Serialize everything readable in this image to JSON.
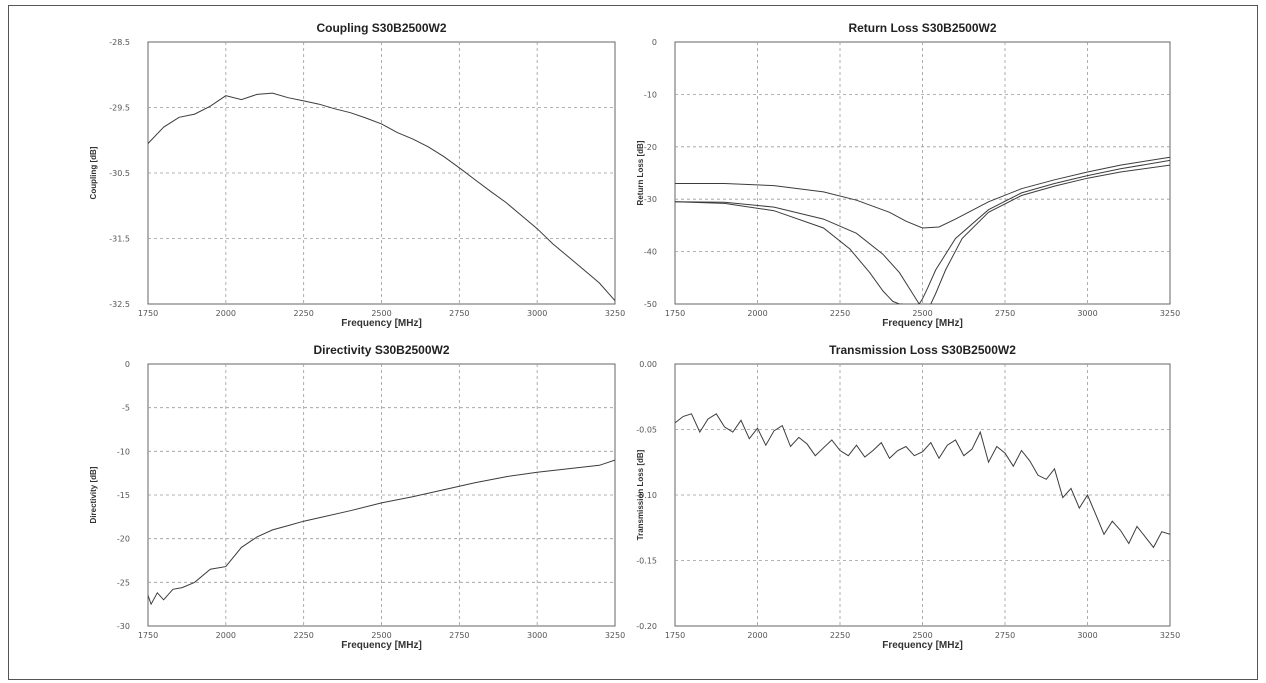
{
  "chart_data": [
    {
      "type": "line",
      "title": "Coupling S30B2500W2",
      "xlabel": "Frequency [MHz]",
      "ylabel": "Coupling [dB]",
      "xlim": [
        1750,
        3250
      ],
      "ylim": [
        -32.5,
        -28.5
      ],
      "xticks": [
        "1750",
        "2000",
        "2250",
        "2500",
        "2750",
        "3000",
        "3250"
      ],
      "yticks": [
        "-28.5",
        "-29.5",
        "-30.5",
        "-31.5",
        "-32.5"
      ],
      "grid": true,
      "series": [
        {
          "x": [
            1750,
            1800,
            1850,
            1900,
            1950,
            2000,
            2050,
            2100,
            2150,
            2200,
            2250,
            2300,
            2350,
            2400,
            2450,
            2500,
            2550,
            2600,
            2650,
            2700,
            2750,
            2800,
            2850,
            2900,
            2950,
            3000,
            3050,
            3100,
            3150,
            3200,
            3250
          ],
          "y": [
            -30.05,
            -29.8,
            -29.65,
            -29.6,
            -29.48,
            -29.32,
            -29.38,
            -29.3,
            -29.28,
            -29.35,
            -29.4,
            -29.45,
            -29.52,
            -29.58,
            -29.66,
            -29.75,
            -29.88,
            -29.98,
            -30.1,
            -30.25,
            -30.42,
            -30.6,
            -30.78,
            -30.95,
            -31.15,
            -31.35,
            -31.58,
            -31.78,
            -31.98,
            -32.18,
            -32.45
          ]
        }
      ]
    },
    {
      "type": "line",
      "title": "Return Loss S30B2500W2",
      "xlabel": "Frequency [MHz]",
      "ylabel": "Return Loss [dB]",
      "xlim": [
        1750,
        3250
      ],
      "ylim": [
        -50,
        0
      ],
      "xticks": [
        "1750",
        "2000",
        "2250",
        "2500",
        "2750",
        "3000",
        "3250"
      ],
      "yticks": [
        "0",
        "-10",
        "-20",
        "-30",
        "-40",
        "-50"
      ],
      "grid": true,
      "series": [
        {
          "x": [
            1750,
            1900,
            2050,
            2200,
            2300,
            2400,
            2450,
            2500,
            2550,
            2600,
            2700,
            2800,
            2900,
            3000,
            3100,
            3250
          ],
          "y": [
            -27,
            -27,
            -27.4,
            -28.6,
            -30.2,
            -32.5,
            -34.2,
            -35.5,
            -35.3,
            -33.8,
            -30.5,
            -28,
            -26.3,
            -24.8,
            -23.5,
            -22
          ]
        },
        {
          "x": [
            1750,
            1900,
            2050,
            2200,
            2300,
            2380,
            2430,
            2470,
            2490,
            2500,
            2515,
            2540,
            2600,
            2700,
            2800,
            2900,
            3000,
            3100,
            3250
          ],
          "y": [
            -30.5,
            -30.6,
            -31.5,
            -33.8,
            -36.5,
            -40.5,
            -44,
            -48,
            -50,
            -49,
            -47,
            -43.5,
            -37.5,
            -32,
            -28.8,
            -27,
            -25.5,
            -24.2,
            -22.6
          ]
        },
        {
          "x": [
            1750,
            1900,
            2050,
            2200,
            2280,
            2340,
            2380,
            2410,
            2430,
            2440
          ],
          "y": [
            -30.5,
            -30.8,
            -32.2,
            -35.5,
            -39.5,
            -44,
            -47.5,
            -49.5,
            -50,
            -50
          ]
        },
        {
          "x": [
            2525,
            2540,
            2570,
            2620,
            2700,
            2800,
            2900,
            3000,
            3100,
            3250
          ],
          "y": [
            -50,
            -48,
            -43.5,
            -37.5,
            -32.5,
            -29.3,
            -27.5,
            -26,
            -24.8,
            -23.5
          ]
        }
      ]
    },
    {
      "type": "line",
      "title": "Directivity S30B2500W2",
      "xlabel": "Frequency [MHz]",
      "ylabel": "Directivity [dB]",
      "xlim": [
        1750,
        3250
      ],
      "ylim": [
        -30,
        0
      ],
      "xticks": [
        "1750",
        "2000",
        "2250",
        "2500",
        "2750",
        "3000",
        "3250"
      ],
      "yticks": [
        "0",
        "-5",
        "-10",
        "-15",
        "-20",
        "-25",
        "-30"
      ],
      "grid": true,
      "series": [
        {
          "x": [
            1750,
            1760,
            1780,
            1800,
            1830,
            1860,
            1900,
            1950,
            2000,
            2050,
            2100,
            2150,
            2200,
            2250,
            2300,
            2400,
            2500,
            2600,
            2700,
            2800,
            2900,
            3000,
            3100,
            3200,
            3250
          ],
          "y": [
            -26.5,
            -27.5,
            -26.2,
            -27.0,
            -25.8,
            -25.6,
            -25.0,
            -23.5,
            -23.2,
            -21.0,
            -19.8,
            -19.0,
            -18.5,
            -18.0,
            -17.6,
            -16.8,
            -15.9,
            -15.2,
            -14.4,
            -13.6,
            -12.9,
            -12.4,
            -12.0,
            -11.6,
            -11.0
          ]
        }
      ]
    },
    {
      "type": "line",
      "title": "Transmission Loss S30B2500W2",
      "xlabel": "Frequency [MHz]",
      "ylabel": "Transmission Loss [dB]",
      "xlim": [
        1750,
        3250
      ],
      "ylim": [
        -0.2,
        0.0
      ],
      "xticks": [
        "1750",
        "2000",
        "2250",
        "2500",
        "2750",
        "3000",
        "3250"
      ],
      "yticks": [
        "0.00",
        "-0.05",
        "-0.10",
        "-0.15",
        "-0.20"
      ],
      "grid": true,
      "series": [
        {
          "x": [
            1750,
            1775,
            1800,
            1825,
            1850,
            1875,
            1900,
            1925,
            1950,
            1975,
            2000,
            2025,
            2050,
            2075,
            2100,
            2125,
            2150,
            2175,
            2200,
            2225,
            2250,
            2275,
            2300,
            2325,
            2350,
            2375,
            2400,
            2425,
            2450,
            2475,
            2500,
            2525,
            2550,
            2575,
            2600,
            2625,
            2650,
            2675,
            2700,
            2725,
            2750,
            2775,
            2800,
            2825,
            2850,
            2875,
            2900,
            2925,
            2950,
            2975,
            3000,
            3025,
            3050,
            3075,
            3100,
            3125,
            3150,
            3175,
            3200,
            3225,
            3250
          ],
          "y": [
            -0.045,
            -0.04,
            -0.038,
            -0.052,
            -0.042,
            -0.038,
            -0.048,
            -0.052,
            -0.043,
            -0.057,
            -0.049,
            -0.062,
            -0.051,
            -0.047,
            -0.063,
            -0.056,
            -0.061,
            -0.07,
            -0.064,
            -0.058,
            -0.066,
            -0.07,
            -0.062,
            -0.071,
            -0.066,
            -0.06,
            -0.072,
            -0.066,
            -0.063,
            -0.07,
            -0.067,
            -0.06,
            -0.072,
            -0.062,
            -0.058,
            -0.07,
            -0.065,
            -0.052,
            -0.075,
            -0.063,
            -0.068,
            -0.078,
            -0.066,
            -0.074,
            -0.085,
            -0.088,
            -0.08,
            -0.102,
            -0.095,
            -0.11,
            -0.1,
            -0.115,
            -0.13,
            -0.12,
            -0.127,
            -0.137,
            -0.124,
            -0.132,
            -0.14,
            -0.128,
            -0.13
          ]
        }
      ]
    }
  ]
}
